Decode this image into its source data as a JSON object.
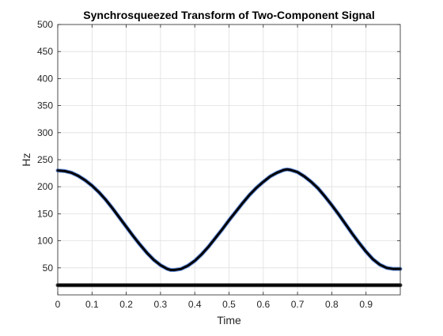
{
  "chart_data": {
    "type": "line",
    "title": "Synchrosqueezed Transform of Two-Component Signal",
    "xlabel": "Time",
    "ylabel": "Hz",
    "xlim": [
      0,
      1
    ],
    "ylim": [
      0,
      500
    ],
    "grid": true,
    "x_ticks": [
      {
        "value": 0,
        "label": "0"
      },
      {
        "value": 0.1,
        "label": "0.1"
      },
      {
        "value": 0.2,
        "label": "0.2"
      },
      {
        "value": 0.3,
        "label": "0.3"
      },
      {
        "value": 0.4,
        "label": "0.4"
      },
      {
        "value": 0.5,
        "label": "0.5"
      },
      {
        "value": 0.6,
        "label": "0.6"
      },
      {
        "value": 0.7,
        "label": "0.7"
      },
      {
        "value": 0.8,
        "label": "0.8"
      },
      {
        "value": 0.9,
        "label": "0.9"
      }
    ],
    "y_ticks": [
      {
        "value": 50,
        "label": "50"
      },
      {
        "value": 100,
        "label": "100"
      },
      {
        "value": 150,
        "label": "150"
      },
      {
        "value": 200,
        "label": "200"
      },
      {
        "value": 250,
        "label": "250"
      },
      {
        "value": 300,
        "label": "300"
      },
      {
        "value": 350,
        "label": "350"
      },
      {
        "value": 400,
        "label": "400"
      },
      {
        "value": 450,
        "label": "450"
      },
      {
        "value": 500,
        "label": "500"
      }
    ],
    "series": [
      {
        "color": "#000000",
        "halo_color": "#4f7fdc",
        "x": [
          0,
          0.02,
          0.04,
          0.06,
          0.08,
          0.1,
          0.12,
          0.14,
          0.16,
          0.18,
          0.2,
          0.22,
          0.24,
          0.26,
          0.28,
          0.3,
          0.32,
          0.33,
          0.34,
          0.36,
          0.38,
          0.4,
          0.42,
          0.44,
          0.46,
          0.48,
          0.5,
          0.52,
          0.54,
          0.56,
          0.58,
          0.6,
          0.62,
          0.64,
          0.66,
          0.67,
          0.68,
          0.7,
          0.72,
          0.74,
          0.76,
          0.78,
          0.8,
          0.82,
          0.84,
          0.86,
          0.88,
          0.9,
          0.92,
          0.94,
          0.96,
          0.98,
          1.0
        ],
        "y": [
          230,
          229,
          226,
          220,
          212,
          202,
          190,
          176,
          160,
          143,
          126,
          109,
          93,
          78,
          65,
          55,
          48,
          46,
          46,
          48,
          54,
          63,
          75,
          89,
          105,
          121,
          138,
          154,
          170,
          185,
          198,
          209,
          219,
          226,
          231,
          232,
          231,
          227,
          219,
          209,
          197,
          182,
          166,
          149,
          131,
          113,
          96,
          80,
          66,
          56,
          50,
          48,
          48
        ]
      },
      {
        "color": "#000000",
        "halo_color": "#2c2c2c",
        "x": [
          0,
          1.0
        ],
        "y": [
          18,
          18
        ]
      }
    ]
  }
}
